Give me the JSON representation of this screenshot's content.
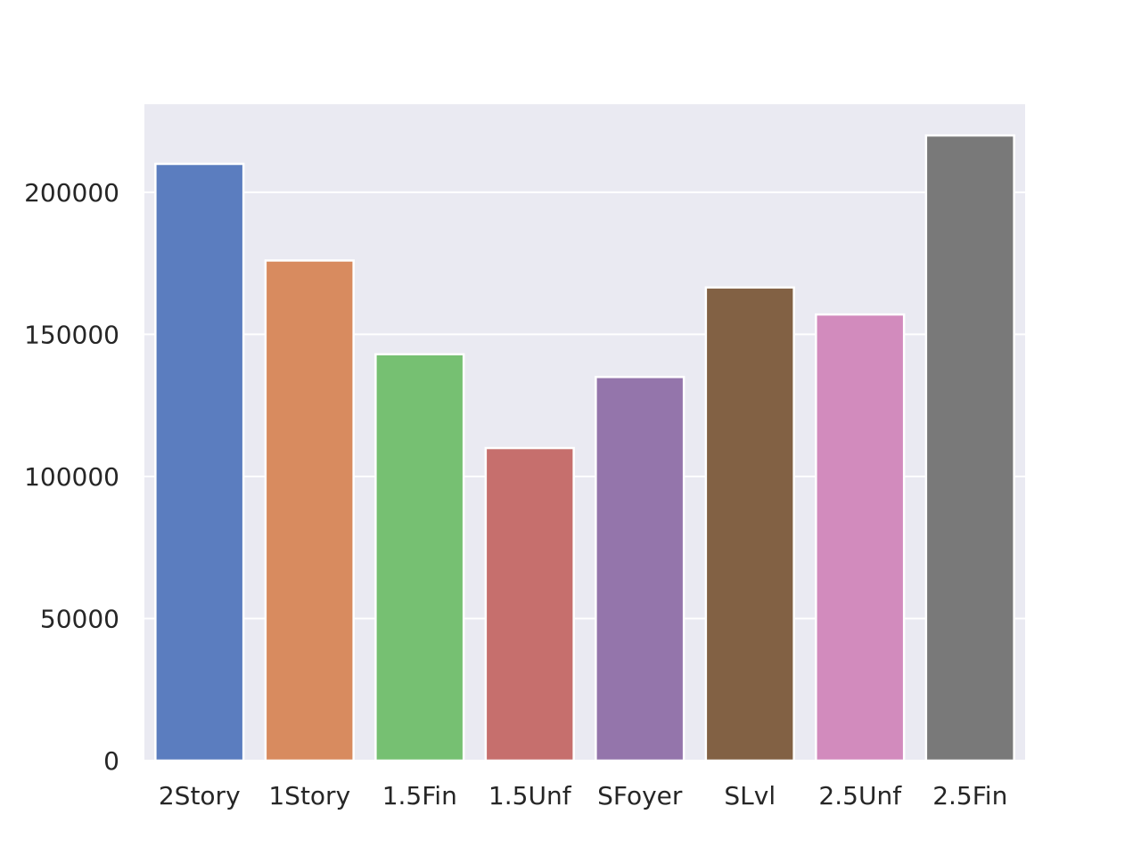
{
  "chart_data": {
    "type": "bar",
    "title": "",
    "xlabel": "",
    "ylabel": "",
    "categories": [
      "2Story",
      "1Story",
      "1.5Fin",
      "1.5Unf",
      "SFoyer",
      "SLvl",
      "2.5Unf",
      "2.5Fin"
    ],
    "values": [
      210000,
      176000,
      143000,
      110000,
      135000,
      166500,
      157000,
      220000
    ],
    "colors": [
      "#5b7dbf",
      "#d88b5f",
      "#76c072",
      "#c66f6d",
      "#9475ab",
      "#826144",
      "#d28bbd",
      "#797979"
    ],
    "ylim": [
      0,
      231000
    ],
    "yticks": [
      0,
      50000,
      100000,
      150000,
      200000
    ],
    "grid": true,
    "background": "#eaeaf2",
    "gridline_color": "#ffffff"
  }
}
